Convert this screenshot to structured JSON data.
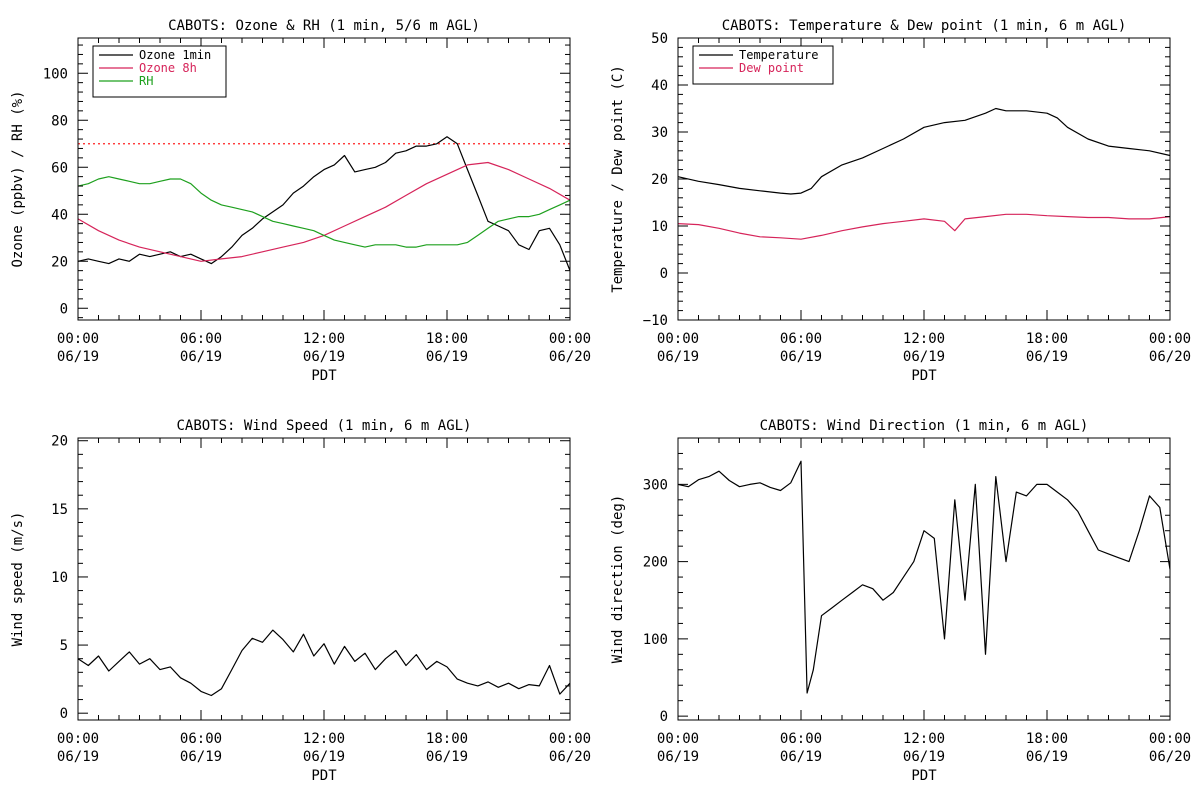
{
  "colors": {
    "black": "#000000",
    "crimson": "#d6245a",
    "green": "#1ea01e",
    "threshold": "#ff2020"
  },
  "chart_data": [
    {
      "type": "line",
      "title": "CABOTS: Ozone & RH (1 min, 5/6 m AGL)",
      "xlabel": "PDT",
      "ylabel": "Ozone (ppbv) / RH (%)",
      "xlim": [
        0,
        24
      ],
      "ylim": [
        -5,
        115
      ],
      "xticks": [
        0,
        6,
        12,
        18,
        24
      ],
      "xtick_labels": [
        [
          "00:00",
          "06/19"
        ],
        [
          "06:00",
          "06/19"
        ],
        [
          "12:00",
          "06/19"
        ],
        [
          "18:00",
          "06/19"
        ],
        [
          "00:00",
          "06/20"
        ]
      ],
      "yticks": [
        0,
        20,
        40,
        60,
        80,
        100
      ],
      "ytick_labels": [
        "0",
        "20",
        "40",
        "60",
        "80",
        "100"
      ],
      "legend_position": "top-left",
      "threshold": {
        "y": 70,
        "color": "#ff2020",
        "style": "dotted"
      },
      "series": [
        {
          "name": "Ozone 1min",
          "color": "#000000",
          "x": [
            0,
            0.5,
            1,
            1.5,
            2,
            2.5,
            3,
            3.5,
            4,
            4.5,
            5,
            5.5,
            6,
            6.5,
            7,
            7.5,
            8,
            8.5,
            9,
            9.5,
            10,
            10.5,
            11,
            11.5,
            12,
            12.5,
            13,
            13.5,
            14,
            14.5,
            15,
            15.5,
            16,
            16.5,
            17,
            17.5,
            18,
            18.5,
            19,
            19.5,
            20,
            20.5,
            21,
            21.5,
            22,
            22.5,
            23,
            23.5,
            24
          ],
          "y": [
            20,
            21,
            20,
            19,
            21,
            20,
            23,
            22,
            23,
            24,
            22,
            23,
            21,
            19,
            22,
            26,
            31,
            34,
            38,
            41,
            44,
            49,
            52,
            56,
            59,
            61,
            65,
            58,
            59,
            60,
            62,
            66,
            67,
            69,
            69,
            70,
            73,
            70,
            59,
            48,
            37,
            35,
            33,
            27,
            25,
            33,
            34,
            27,
            16
          ]
        },
        {
          "name": "Ozone 8h",
          "color": "#d6245a",
          "x": [
            0,
            1,
            2,
            3,
            4,
            5,
            6,
            7,
            8,
            9,
            10,
            11,
            12,
            13,
            14,
            15,
            16,
            17,
            18,
            19,
            20,
            21,
            22,
            23,
            24
          ],
          "y": [
            38,
            33,
            29,
            26,
            24,
            22,
            20,
            21,
            22,
            24,
            26,
            28,
            31,
            35,
            39,
            43,
            48,
            53,
            57,
            61,
            62,
            59,
            55,
            51,
            46
          ]
        },
        {
          "name": "RH",
          "color": "#1ea01e",
          "x": [
            0,
            0.5,
            1,
            1.5,
            2,
            2.5,
            3,
            3.5,
            4,
            4.5,
            5,
            5.5,
            6,
            6.5,
            7,
            7.5,
            8,
            8.5,
            9,
            9.5,
            10,
            10.5,
            11,
            11.5,
            12,
            12.5,
            13,
            13.5,
            14,
            14.5,
            15,
            15.5,
            16,
            16.5,
            17,
            17.5,
            18,
            18.5,
            19,
            19.5,
            20,
            20.5,
            21,
            21.5,
            22,
            22.5,
            23,
            23.5,
            24
          ],
          "y": [
            52,
            53,
            55,
            56,
            55,
            54,
            53,
            53,
            54,
            55,
            55,
            53,
            49,
            46,
            44,
            43,
            42,
            41,
            39,
            37,
            36,
            35,
            34,
            33,
            31,
            29,
            28,
            27,
            26,
            27,
            27,
            27,
            26,
            26,
            27,
            27,
            27,
            27,
            28,
            31,
            34,
            37,
            38,
            39,
            39,
            40,
            42,
            44,
            46
          ]
        }
      ]
    },
    {
      "type": "line",
      "title": "CABOTS: Temperature & Dew point (1 min, 6 m AGL)",
      "xlabel": "PDT",
      "ylabel": "Temperature / Dew point (C)",
      "xlim": [
        0,
        24
      ],
      "ylim": [
        -10,
        50
      ],
      "xticks": [
        0,
        6,
        12,
        18,
        24
      ],
      "xtick_labels": [
        [
          "00:00",
          "06/19"
        ],
        [
          "06:00",
          "06/19"
        ],
        [
          "12:00",
          "06/19"
        ],
        [
          "18:00",
          "06/19"
        ],
        [
          "00:00",
          "06/20"
        ]
      ],
      "yticks": [
        -10,
        0,
        10,
        20,
        30,
        40,
        50
      ],
      "ytick_labels": [
        "−10",
        "0",
        "10",
        "20",
        "30",
        "40",
        "50"
      ],
      "legend_position": "top-left",
      "series": [
        {
          "name": "Temperature",
          "color": "#000000",
          "x": [
            0,
            1,
            2,
            3,
            4,
            5,
            5.5,
            6,
            6.5,
            7,
            8,
            9,
            10,
            11,
            12,
            13,
            14,
            15,
            15.5,
            16,
            17,
            18,
            18.5,
            19,
            20,
            21,
            22,
            23,
            24
          ],
          "y": [
            20.5,
            19.5,
            18.8,
            18,
            17.5,
            17,
            16.8,
            17,
            18,
            20.5,
            23,
            24.5,
            26.5,
            28.5,
            31,
            32,
            32.5,
            34,
            35,
            34.5,
            34.5,
            34,
            33,
            31,
            28.5,
            27,
            26.5,
            26,
            25
          ]
        },
        {
          "name": "Dew point",
          "color": "#d6245a",
          "x": [
            0,
            1,
            2,
            3,
            4,
            5,
            6,
            7,
            8,
            9,
            10,
            11,
            12,
            13,
            13.5,
            14,
            15,
            16,
            17,
            18,
            19,
            20,
            21,
            22,
            23,
            24
          ],
          "y": [
            10.5,
            10.3,
            9.5,
            8.5,
            7.7,
            7.5,
            7.2,
            8,
            9,
            9.8,
            10.5,
            11,
            11.5,
            11,
            9,
            11.5,
            12,
            12.5,
            12.5,
            12.2,
            12,
            11.8,
            11.8,
            11.5,
            11.5,
            12
          ]
        }
      ]
    },
    {
      "type": "line",
      "title": "CABOTS: Wind Speed (1 min, 6 m AGL)",
      "xlabel": "PDT",
      "ylabel": "Wind speed (m/s)",
      "xlim": [
        0,
        24
      ],
      "ylim": [
        -0.5,
        20.2
      ],
      "xticks": [
        0,
        6,
        12,
        18,
        24
      ],
      "xtick_labels": [
        [
          "00:00",
          "06/19"
        ],
        [
          "06:00",
          "06/19"
        ],
        [
          "12:00",
          "06/19"
        ],
        [
          "18:00",
          "06/19"
        ],
        [
          "00:00",
          "06/20"
        ]
      ],
      "yticks": [
        0,
        5,
        10,
        15,
        20
      ],
      "ytick_labels": [
        "0",
        "5",
        "10",
        "15",
        "20"
      ],
      "series": [
        {
          "name": "",
          "color": "#000000",
          "x": [
            0,
            0.5,
            1,
            1.5,
            2,
            2.5,
            3,
            3.5,
            4,
            4.5,
            5,
            5.5,
            6,
            6.5,
            7,
            7.5,
            8,
            8.5,
            9,
            9.5,
            10,
            10.5,
            11,
            11.5,
            12,
            12.5,
            13,
            13.5,
            14,
            14.5,
            15,
            15.5,
            16,
            16.5,
            17,
            17.5,
            18,
            18.5,
            19,
            19.5,
            20,
            20.5,
            21,
            21.5,
            22,
            22.5,
            23,
            23.5,
            24
          ],
          "y": [
            4,
            3.5,
            4.2,
            3.1,
            3.8,
            4.5,
            3.6,
            4.0,
            3.2,
            3.4,
            2.6,
            2.2,
            1.6,
            1.3,
            1.8,
            3.2,
            4.6,
            5.5,
            5.2,
            6.1,
            5.4,
            4.5,
            5.8,
            4.2,
            5.1,
            3.6,
            4.9,
            3.8,
            4.4,
            3.2,
            4.0,
            4.6,
            3.5,
            4.3,
            3.2,
            3.8,
            3.4,
            2.5,
            2.2,
            2.0,
            2.3,
            1.9,
            2.2,
            1.8,
            2.1,
            2.0,
            3.5,
            1.4,
            2.2
          ]
        }
      ]
    },
    {
      "type": "line",
      "title": "CABOTS: Wind Direction (1 min, 6 m AGL)",
      "xlabel": "PDT",
      "ylabel": "Wind direction (deg)",
      "xlim": [
        0,
        24
      ],
      "ylim": [
        -5,
        360
      ],
      "xticks": [
        0,
        6,
        12,
        18,
        24
      ],
      "xtick_labels": [
        [
          "00:00",
          "06/19"
        ],
        [
          "06:00",
          "06/19"
        ],
        [
          "12:00",
          "06/19"
        ],
        [
          "18:00",
          "06/19"
        ],
        [
          "00:00",
          "06/20"
        ]
      ],
      "yticks": [
        0,
        100,
        200,
        300
      ],
      "ytick_labels": [
        "0",
        "100",
        "200",
        "300"
      ],
      "series": [
        {
          "name": "",
          "color": "#000000",
          "x": [
            0,
            0.5,
            1,
            1.5,
            2,
            2.5,
            3,
            3.5,
            4,
            4.5,
            5,
            5.5,
            6,
            6.3,
            6.6,
            7,
            7.5,
            8,
            8.5,
            9,
            9.5,
            10,
            10.5,
            11,
            11.5,
            12,
            12.5,
            13,
            13.5,
            14,
            14.5,
            15,
            15.5,
            16,
            16.5,
            17,
            17.5,
            18,
            18.5,
            19,
            19.5,
            20,
            20.5,
            21,
            21.5,
            22,
            22.5,
            23,
            23.5,
            24
          ],
          "y": [
            300,
            297,
            306,
            310,
            317,
            305,
            297,
            300,
            302,
            296,
            292,
            302,
            330,
            30,
            60,
            130,
            140,
            150,
            160,
            170,
            165,
            150,
            160,
            180,
            200,
            240,
            230,
            100,
            280,
            150,
            300,
            80,
            310,
            200,
            290,
            285,
            300,
            300,
            290,
            280,
            265,
            240,
            215,
            210,
            205,
            200,
            240,
            285,
            270,
            190
          ]
        }
      ]
    }
  ]
}
